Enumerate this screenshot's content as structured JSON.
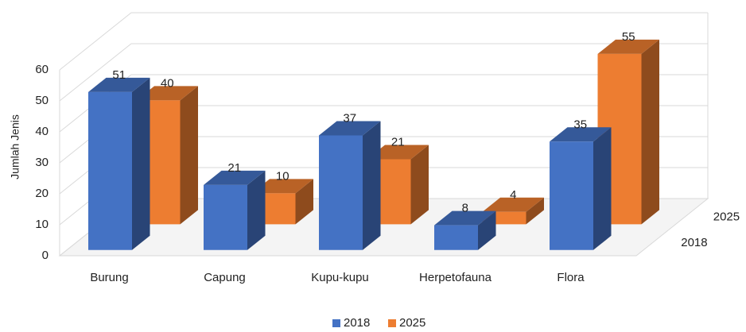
{
  "chart_data": {
    "type": "bar3d",
    "ylabel": "Jumlah Jenis",
    "categories": [
      "Burung",
      "Capung",
      "Kupu-kupu",
      "Herpetofauna",
      "Flora"
    ],
    "series": [
      {
        "name": "2018",
        "color": "#4472c4",
        "values": [
          51,
          21,
          37,
          8,
          35
        ]
      },
      {
        "name": "2025",
        "color": "#ed7d31",
        "values": [
          40,
          10,
          21,
          4,
          55
        ]
      }
    ],
    "ylim": [
      0,
      60
    ],
    "yticks": [
      0,
      10,
      20,
      30,
      40,
      50,
      60
    ],
    "grid": true,
    "legend": "bottom"
  }
}
